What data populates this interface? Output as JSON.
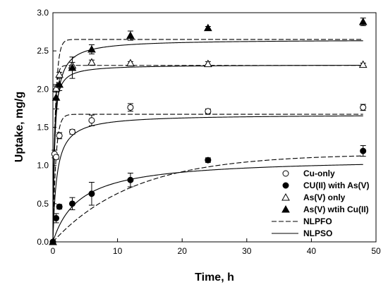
{
  "chart_data": {
    "type": "scatter",
    "xlabel": "Time, h",
    "ylabel": "Uptake, mg/g",
    "xlim": [
      0,
      50
    ],
    "ylim": [
      0,
      3.0
    ],
    "xticks": [
      "0",
      "10",
      "20",
      "30",
      "40",
      "50"
    ],
    "yticks": [
      "0.0",
      "0.5",
      "1.0",
      "1.5",
      "2.0",
      "2.5",
      "3.0"
    ],
    "xtick_values": [
      0,
      10,
      20,
      30,
      40,
      50
    ],
    "ytick_values": [
      0,
      0.5,
      1.0,
      1.5,
      2.0,
      2.5,
      3.0
    ],
    "grid": false,
    "legend_position": "bottom-right",
    "series": [
      {
        "name": "Cu-only",
        "marker": "circle-open",
        "color": "#000000",
        "points": [
          {
            "x": 0.25,
            "y": 1.15,
            "err": 0.05
          },
          {
            "x": 0.5,
            "y": 1.11,
            "err": 0.03
          },
          {
            "x": 1,
            "y": 1.39,
            "err": 0.04
          },
          {
            "x": 3,
            "y": 1.44,
            "err": 0.03
          },
          {
            "x": 6,
            "y": 1.59,
            "err": 0.07
          },
          {
            "x": 12,
            "y": 1.76,
            "err": 0.05
          },
          {
            "x": 24,
            "y": 1.71,
            "err": 0.03
          },
          {
            "x": 48,
            "y": 1.76,
            "err": 0.04
          }
        ]
      },
      {
        "name": "CU(II) with As(V)",
        "marker": "circle-filled",
        "color": "#000000",
        "points": [
          {
            "x": 0,
            "y": 0.0,
            "err": 0
          },
          {
            "x": 0.5,
            "y": 0.31,
            "err": 0.06
          },
          {
            "x": 1,
            "y": 0.46,
            "err": 0.03
          },
          {
            "x": 3,
            "y": 0.5,
            "err": 0.08
          },
          {
            "x": 6,
            "y": 0.63,
            "err": 0.15
          },
          {
            "x": 12,
            "y": 0.81,
            "err": 0.09
          },
          {
            "x": 24,
            "y": 1.07,
            "err": 0.03
          },
          {
            "x": 48,
            "y": 1.19,
            "err": 0.07
          }
        ]
      },
      {
        "name": "As(V) only",
        "marker": "triangle-open",
        "color": "#000000",
        "points": [
          {
            "x": 0.5,
            "y": 2.01,
            "err": 0.05
          },
          {
            "x": 1,
            "y": 2.19,
            "err": 0.03
          },
          {
            "x": 3,
            "y": 2.31,
            "err": 0.04
          },
          {
            "x": 6,
            "y": 2.35,
            "err": 0.03
          },
          {
            "x": 12,
            "y": 2.34,
            "err": 0.02
          },
          {
            "x": 24,
            "y": 2.33,
            "err": 0.03
          },
          {
            "x": 48,
            "y": 2.32,
            "err": 0.02
          }
        ]
      },
      {
        "name": "As(V) wtih Cu(II)",
        "marker": "triangle-filled",
        "color": "#000000",
        "points": [
          {
            "x": 0,
            "y": 0.0,
            "err": 0
          },
          {
            "x": 0.5,
            "y": 1.89,
            "err": 0.15
          },
          {
            "x": 1,
            "y": 2.06,
            "err": 0.08
          },
          {
            "x": 3,
            "y": 2.28,
            "err": 0.14
          },
          {
            "x": 6,
            "y": 2.52,
            "err": 0.06
          },
          {
            "x": 12,
            "y": 2.7,
            "err": 0.06
          },
          {
            "x": 24,
            "y": 2.8,
            "err": 0.02
          },
          {
            "x": 48,
            "y": 2.88,
            "err": 0.05
          }
        ]
      }
    ],
    "fits": [
      {
        "name": "NLPFO",
        "style": "dashed",
        "curves": [
          {
            "qe": 2.65,
            "k": 2.5
          },
          {
            "qe": 2.31,
            "k": 3.5
          },
          {
            "qe": 1.67,
            "k": 2.2
          },
          {
            "qe": 1.15,
            "k": 0.08
          }
        ]
      },
      {
        "name": "NLPSO",
        "style": "solid",
        "curves": [
          {
            "qe": 2.65,
            "k": 1.2
          },
          {
            "qe": 2.32,
            "k": 2.5
          },
          {
            "qe": 1.67,
            "k": 1.0
          },
          {
            "qe": 1.1,
            "k": 0.22
          }
        ]
      }
    ]
  }
}
